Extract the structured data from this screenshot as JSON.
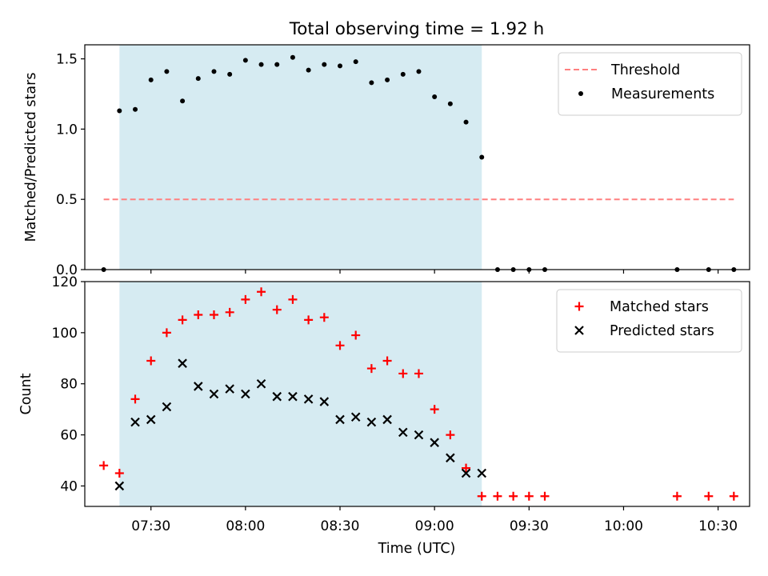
{
  "title": "Total observing time = 1.92 h",
  "xlabel": "Time (UTC)",
  "x_ticks": [
    "07:30",
    "08:00",
    "08:30",
    "09:00",
    "09:30",
    "10:00",
    "10:30"
  ],
  "chart_data": [
    {
      "type": "scatter",
      "panel": "top",
      "ylabel": "Matched/Predicted stars",
      "xlim": [
        "07:09",
        "10:40"
      ],
      "ylim": [
        0,
        1.6
      ],
      "y_ticks": [
        "0.0",
        "0.5",
        "1.0",
        "1.5"
      ],
      "shaded_region": {
        "x_start": "07:20",
        "x_end": "09:15",
        "color": "#add8e6"
      },
      "legend": "top-right",
      "series": [
        {
          "name": "Threshold",
          "kind": "line",
          "style": "dashed",
          "color": "#ff7f7f",
          "x": [
            "07:15",
            "10:35"
          ],
          "values": [
            0.5,
            0.5
          ]
        },
        {
          "name": "Measurements",
          "kind": "scatter",
          "marker": "dot",
          "color": "#000000",
          "x": [
            "07:15",
            "07:20",
            "07:25",
            "07:30",
            "07:35",
            "07:40",
            "07:45",
            "07:50",
            "07:55",
            "08:00",
            "08:05",
            "08:10",
            "08:15",
            "08:20",
            "08:25",
            "08:30",
            "08:35",
            "08:40",
            "08:45",
            "08:50",
            "08:55",
            "09:00",
            "09:05",
            "09:10",
            "09:15",
            "09:20",
            "09:25",
            "09:30",
            "09:35",
            "10:17",
            "10:27",
            "10:35"
          ],
          "values": [
            0.0,
            1.13,
            1.14,
            1.35,
            1.41,
            1.2,
            1.36,
            1.41,
            1.39,
            1.49,
            1.46,
            1.46,
            1.51,
            1.42,
            1.46,
            1.45,
            1.48,
            1.33,
            1.35,
            1.39,
            1.41,
            1.23,
            1.18,
            1.05,
            0.8,
            0.0,
            0.0,
            0.0,
            0.0,
            0.0,
            0.0,
            0.0
          ]
        }
      ]
    },
    {
      "type": "scatter",
      "panel": "bottom",
      "ylabel": "Count",
      "xlim": [
        "07:09",
        "10:40"
      ],
      "ylim": [
        32,
        120
      ],
      "y_ticks": [
        "40",
        "60",
        "80",
        "100",
        "120"
      ],
      "shaded_region": {
        "x_start": "07:20",
        "x_end": "09:15",
        "color": "#add8e6"
      },
      "legend": "top-right",
      "series": [
        {
          "name": "Matched stars",
          "kind": "scatter",
          "marker": "plus",
          "color": "#ff0000",
          "x": [
            "07:15",
            "07:20",
            "07:25",
            "07:30",
            "07:35",
            "07:40",
            "07:45",
            "07:50",
            "07:55",
            "08:00",
            "08:05",
            "08:10",
            "08:15",
            "08:20",
            "08:25",
            "08:30",
            "08:35",
            "08:40",
            "08:45",
            "08:50",
            "08:55",
            "09:00",
            "09:05",
            "09:10",
            "09:15",
            "09:20",
            "09:25",
            "09:30",
            "09:35",
            "10:17",
            "10:27",
            "10:35"
          ],
          "values": [
            48,
            45,
            74,
            89,
            100,
            105,
            107,
            107,
            108,
            113,
            116,
            109,
            113,
            105,
            106,
            95,
            99,
            86,
            89,
            84,
            84,
            70,
            60,
            47,
            36,
            36,
            36,
            36,
            36,
            36,
            36,
            36
          ]
        },
        {
          "name": "Predicted stars",
          "kind": "scatter",
          "marker": "x",
          "color": "#000000",
          "x": [
            "07:20",
            "07:25",
            "07:30",
            "07:35",
            "07:40",
            "07:45",
            "07:50",
            "07:55",
            "08:00",
            "08:05",
            "08:10",
            "08:15",
            "08:20",
            "08:25",
            "08:30",
            "08:35",
            "08:40",
            "08:45",
            "08:50",
            "08:55",
            "09:00",
            "09:05",
            "09:10",
            "09:15"
          ],
          "values": [
            40,
            65,
            66,
            71,
            88,
            79,
            76,
            78,
            76,
            80,
            75,
            75,
            74,
            73,
            66,
            67,
            65,
            66,
            61,
            60,
            57,
            51,
            45,
            45
          ]
        }
      ]
    }
  ]
}
